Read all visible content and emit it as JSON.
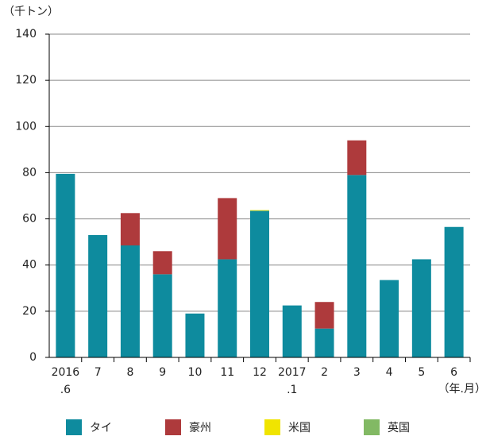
{
  "chart_data": {
    "type": "stacked-bar",
    "y_unit_label": "（千トン）",
    "x_unit_label": "（年.月）",
    "categories": [
      "2016\n.6",
      "7",
      "8",
      "9",
      "10",
      "11",
      "12",
      "2017\n.1",
      "2",
      "3",
      "4",
      "5",
      "6"
    ],
    "series": [
      {
        "name": "タイ",
        "color": "#0e8b9e",
        "values": [
          79.5,
          53,
          48.5,
          36,
          19,
          42.5,
          63.5,
          22.5,
          12.5,
          79,
          33.5,
          42.5,
          56.5
        ]
      },
      {
        "name": "豪州",
        "color": "#ae3a3c",
        "values": [
          0,
          0,
          14,
          10,
          0,
          26.5,
          0,
          0,
          11.5,
          15,
          0,
          0,
          0
        ]
      },
      {
        "name": "米国",
        "color": "#f0e400",
        "values": [
          0,
          0,
          0,
          0,
          0,
          0,
          0.3,
          0,
          0,
          0,
          0,
          0,
          0
        ]
      },
      {
        "name": "英国",
        "color": "#82b964",
        "values": [
          0,
          0,
          0,
          0,
          0,
          0,
          0,
          0,
          0,
          0,
          0,
          0,
          0
        ]
      }
    ],
    "ylim": [
      0,
      140
    ],
    "yticks": [
      0,
      20,
      40,
      60,
      80,
      100,
      120,
      140
    ],
    "grid": true,
    "legend": "bottom"
  }
}
